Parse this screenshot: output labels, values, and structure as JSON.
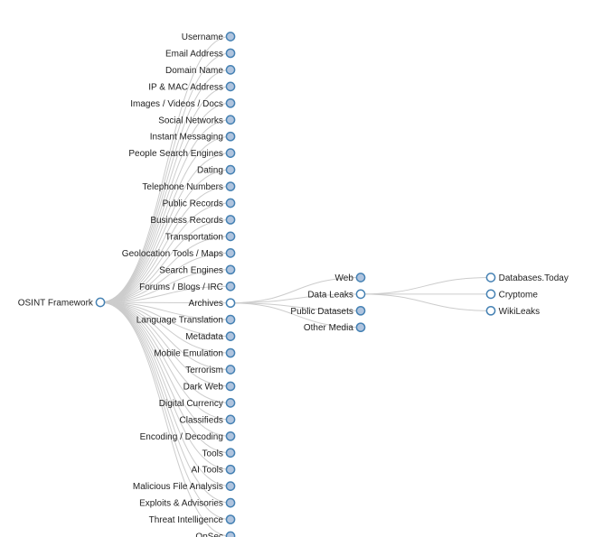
{
  "colors": {
    "collapsed_fill": "#b0c4de",
    "expanded_fill": "#ffffff",
    "node_stroke": "#4682b4",
    "link": "#cccccc",
    "text": "#222222"
  },
  "tree": {
    "root": {
      "name": "OSINT Framework",
      "state": "expanded"
    },
    "level1": [
      {
        "name": "Username",
        "state": "collapsed"
      },
      {
        "name": "Email Address",
        "state": "collapsed"
      },
      {
        "name": "Domain Name",
        "state": "collapsed"
      },
      {
        "name": "IP & MAC Address",
        "state": "collapsed"
      },
      {
        "name": "Images / Videos / Docs",
        "state": "collapsed"
      },
      {
        "name": "Social Networks",
        "state": "collapsed"
      },
      {
        "name": "Instant Messaging",
        "state": "collapsed"
      },
      {
        "name": "People Search Engines",
        "state": "collapsed"
      },
      {
        "name": "Dating",
        "state": "collapsed"
      },
      {
        "name": "Telephone Numbers",
        "state": "collapsed"
      },
      {
        "name": "Public Records",
        "state": "collapsed"
      },
      {
        "name": "Business Records",
        "state": "collapsed"
      },
      {
        "name": "Transportation",
        "state": "collapsed"
      },
      {
        "name": "Geolocation Tools / Maps",
        "state": "collapsed"
      },
      {
        "name": "Search Engines",
        "state": "collapsed"
      },
      {
        "name": "Forums / Blogs / IRC",
        "state": "collapsed"
      },
      {
        "name": "Archives",
        "state": "expanded"
      },
      {
        "name": "Language Translation",
        "state": "collapsed"
      },
      {
        "name": "Metadata",
        "state": "collapsed"
      },
      {
        "name": "Mobile Emulation",
        "state": "collapsed"
      },
      {
        "name": "Terrorism",
        "state": "collapsed"
      },
      {
        "name": "Dark Web",
        "state": "collapsed"
      },
      {
        "name": "Digital Currency",
        "state": "collapsed"
      },
      {
        "name": "Classifieds",
        "state": "collapsed"
      },
      {
        "name": "Encoding / Decoding",
        "state": "collapsed"
      },
      {
        "name": "Tools",
        "state": "collapsed"
      },
      {
        "name": "AI Tools",
        "state": "collapsed"
      },
      {
        "name": "Malicious File Analysis",
        "state": "collapsed"
      },
      {
        "name": "Exploits & Advisories",
        "state": "collapsed"
      },
      {
        "name": "Threat Intelligence",
        "state": "collapsed"
      },
      {
        "name": "OpSec",
        "state": "collapsed"
      }
    ],
    "archives_children": [
      {
        "name": "Web",
        "state": "collapsed"
      },
      {
        "name": "Data Leaks",
        "state": "expanded"
      },
      {
        "name": "Public Datasets",
        "state": "collapsed"
      },
      {
        "name": "Other Media",
        "state": "collapsed"
      }
    ],
    "data_leaks_children": [
      {
        "name": "Databases.Today",
        "state": "leaf"
      },
      {
        "name": "Cryptome",
        "state": "leaf"
      },
      {
        "name": "WikiLeaks",
        "state": "leaf"
      }
    ]
  }
}
